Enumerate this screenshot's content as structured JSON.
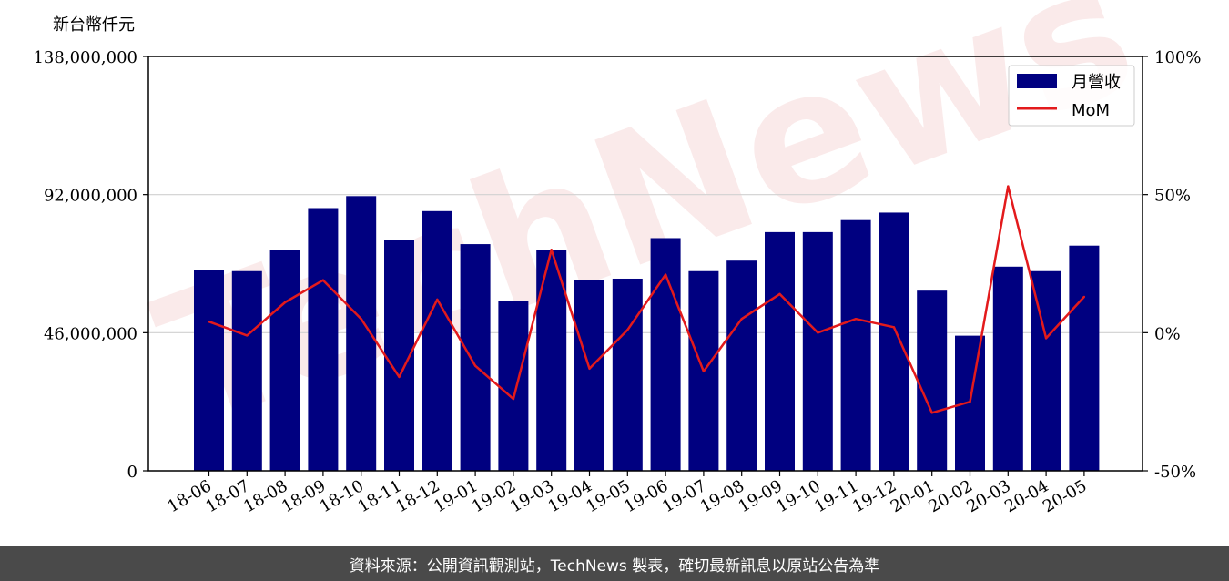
{
  "watermark": "TechNews",
  "footer": {
    "source_text": "資料來源：公開資訊觀測站，TechNews 製表，確切最新訊息以原站公告為準"
  },
  "chart_data": {
    "type": "bar",
    "unit_label": "新台幣仟元",
    "categories": [
      "18-06",
      "18-07",
      "18-08",
      "18-09",
      "18-10",
      "18-11",
      "18-12",
      "19-01",
      "19-02",
      "19-03",
      "19-04",
      "19-05",
      "19-06",
      "19-07",
      "19-08",
      "19-09",
      "19-10",
      "19-11",
      "19-12",
      "20-01",
      "20-02",
      "20-03",
      "20-04",
      "20-05"
    ],
    "series": [
      {
        "name": "月營收",
        "type": "bar",
        "axis": "left",
        "color": "#000080",
        "values": [
          67000000,
          66500000,
          73500000,
          87500000,
          91500000,
          77000000,
          86500000,
          75500000,
          56500000,
          73500000,
          63500000,
          64000000,
          77500000,
          66500000,
          70000000,
          79500000,
          79500000,
          83500000,
          86000000,
          60000000,
          45000000,
          68000000,
          66500000,
          75000000
        ]
      },
      {
        "name": "MoM",
        "type": "line",
        "axis": "right",
        "color": "#e31a1c",
        "values": [
          4,
          -1,
          11,
          19,
          5,
          -16,
          12,
          -12,
          -24,
          30,
          -13,
          1,
          21,
          -14,
          5,
          14,
          0,
          5,
          2,
          -29,
          -25,
          53,
          -2,
          13
        ]
      }
    ],
    "y_left": {
      "min": 0,
      "max": 138000000,
      "ticks": [
        0,
        46000000,
        92000000,
        138000000
      ],
      "tick_labels": [
        "0",
        "46,000,000",
        "92,000,000",
        "138,000,000"
      ]
    },
    "y_right": {
      "min": -50,
      "max": 100,
      "ticks": [
        -50,
        0,
        50,
        100
      ],
      "tick_labels": [
        "-50%",
        "0%",
        "50%",
        "100%"
      ]
    },
    "grid": "horizontal",
    "legend_position": "top-right"
  }
}
